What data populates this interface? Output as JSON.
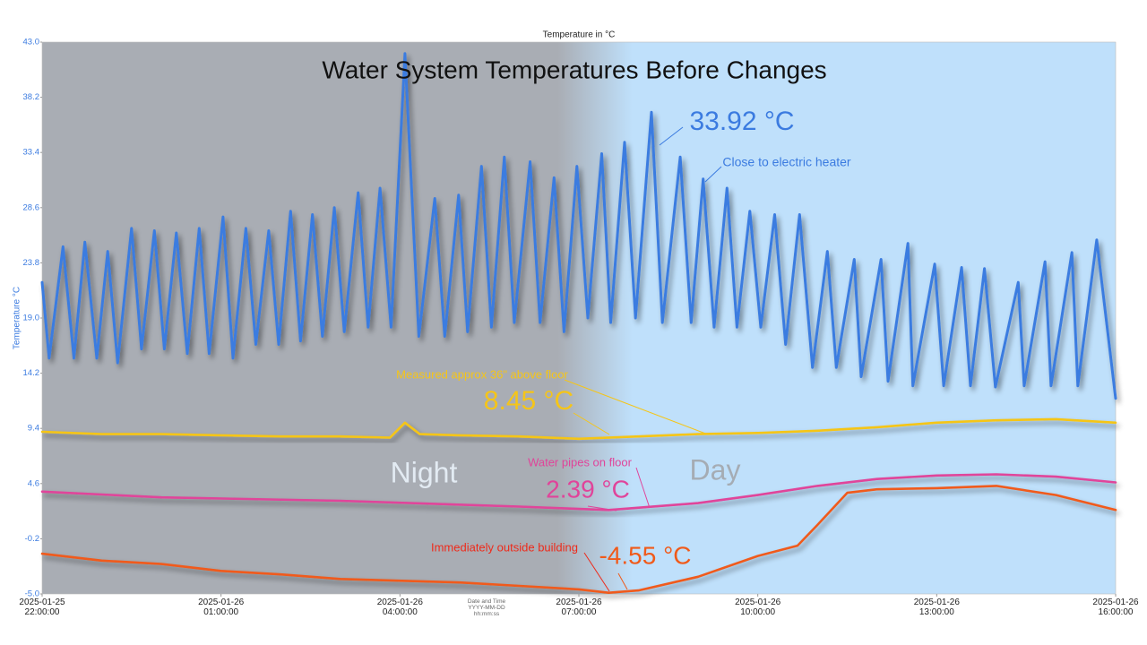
{
  "chart_data": {
    "type": "line",
    "title": "Water System Temperatures Before Changes",
    "subtitle": "Temperature in °C",
    "y_label": "Temperature °C",
    "x_label": "Date and Time YYYY-MM-DD hh:mm:ss",
    "xlim": [
      "2025-01-25 22:00:00",
      "2025-01-26 16:00:00"
    ],
    "xticks": [
      "2025-01-25 22:00:00",
      "2025-01-26 01:00:00",
      "2025-01-26 04:00:00",
      "2025-01-26 07:00:00",
      "2025-01-26 10:00:00",
      "2025-01-26 13:00:00",
      "2025-01-26 16:00:00"
    ],
    "ylim": [
      -5,
      43
    ],
    "yticks": [
      {
        "value": -5,
        "label": "-5.0"
      },
      -0.2,
      4.6,
      9.4,
      14.2,
      {
        "value": 19,
        "label": "19.0"
      },
      23.8,
      28.6,
      33.4,
      38.2,
      {
        "value": 43,
        "label": "43.0"
      }
    ],
    "grid": false,
    "annotations": [
      "Night",
      "Day",
      "33.92 °C",
      "Close to electric heater",
      "Measured approx 36\" above floor",
      "8.45 °C",
      "Water pipes on floor",
      "2.39 °C",
      "Immediately outside building",
      "-4.55 °C"
    ],
    "series": [
      {
        "name": "Close to electric heater",
        "color": "#3b7be0",
        "x": [
          "2025-01-25 22:00:00",
          "2025-01-25 22:07:00",
          "2025-01-25 22:21:00",
          "2025-01-25 22:32:00",
          "2025-01-25 22:43:00",
          "2025-01-25 22:55:00",
          "2025-01-25 23:06:00",
          "2025-01-25 23:16:00",
          "2025-01-25 23:30:00",
          "2025-01-25 23:40:00",
          "2025-01-25 23:53:00",
          "2025-01-26 00:03:00",
          "2025-01-26 00:15:00",
          "2025-01-26 00:26:00",
          "2025-01-26 00:38:00",
          "2025-01-26 00:48:00",
          "2025-01-26 01:02:00",
          "2025-01-26 01:12:00",
          "2025-01-26 01:25:00",
          "2025-01-26 01:35:00",
          "2025-01-26 01:48:00",
          "2025-01-26 01:58:00",
          "2025-01-26 02:10:00",
          "2025-01-26 02:20:00",
          "2025-01-26 02:32:00",
          "2025-01-26 02:42:00",
          "2025-01-26 02:54:00",
          "2025-01-26 03:04:00",
          "2025-01-26 03:18:00",
          "2025-01-26 03:28:00",
          "2025-01-26 03:40:00",
          "2025-01-26 03:51:00",
          "2025-01-26 04:05:00",
          "2025-01-26 04:19:00",
          "2025-01-26 04:35:00",
          "2025-01-26 04:45:00",
          "2025-01-26 04:59:00",
          "2025-01-26 05:08:00",
          "2025-01-26 05:22:00",
          "2025-01-26 05:32:00",
          "2025-01-26 05:45:00",
          "2025-01-26 05:55:00",
          "2025-01-26 06:11:00",
          "2025-01-26 06:21:00",
          "2025-01-26 06:35:00",
          "2025-01-26 06:45:00",
          "2025-01-26 06:58:00",
          "2025-01-26 07:09:00",
          "2025-01-26 07:23:00",
          "2025-01-26 07:32:00",
          "2025-01-26 07:46:00",
          "2025-01-26 07:57:00",
          "2025-01-26 08:13:00",
          "2025-01-26 08:24:00",
          "2025-01-26 08:42:00",
          "2025-01-26 08:53:00",
          "2025-01-26 09:05:00",
          "2025-01-26 09:16:00",
          "2025-01-26 09:29:00",
          "2025-01-26 09:39:00",
          "2025-01-26 09:52:00",
          "2025-01-26 10:03:00",
          "2025-01-26 10:17:00",
          "2025-01-26 10:28:00",
          "2025-01-26 10:42:00",
          "2025-01-26 10:55:00",
          "2025-01-26 11:10:00",
          "2025-01-26 11:19:00",
          "2025-01-26 11:37:00",
          "2025-01-26 11:44:00",
          "2025-01-26 12:04:00",
          "2025-01-26 12:11:00",
          "2025-01-26 12:31:00",
          "2025-01-26 12:36:00",
          "2025-01-26 12:58:00",
          "2025-01-26 13:07:00",
          "2025-01-26 13:25:00",
          "2025-01-26 13:34:00",
          "2025-01-26 13:48:00",
          "2025-01-26 13:59:00",
          "2025-01-26 14:22:00",
          "2025-01-26 14:28:00",
          "2025-01-26 14:49:00",
          "2025-01-26 14:55:00",
          "2025-01-26 15:16:00",
          "2025-01-26 15:22:00",
          "2025-01-26 15:41:00",
          "2025-01-26 16:00:00"
        ],
        "values": [
          22.1,
          15.5,
          25.2,
          15.5,
          25.6,
          15.5,
          24.8,
          15.1,
          26.8,
          16.3,
          26.6,
          16.3,
          26.4,
          15.9,
          26.8,
          15.9,
          27.8,
          15.5,
          26.8,
          16.7,
          26.6,
          16.7,
          28.3,
          17.0,
          28.0,
          17.4,
          28.6,
          17.8,
          29.9,
          18.2,
          30.3,
          18.2,
          42.0,
          17.4,
          29.4,
          17.4,
          29.7,
          17.8,
          32.2,
          18.2,
          33.0,
          18.6,
          32.6,
          18.6,
          31.2,
          17.8,
          32.2,
          19.0,
          33.3,
          18.6,
          34.3,
          19.0,
          36.9,
          18.6,
          33.0,
          18.6,
          31.1,
          18.2,
          30.3,
          18.2,
          28.3,
          18.2,
          28.0,
          16.7,
          28.0,
          14.7,
          24.8,
          14.7,
          24.1,
          13.9,
          24.1,
          13.5,
          25.5,
          13.1,
          23.7,
          13.1,
          23.4,
          13.1,
          23.3,
          13.0,
          22.1,
          13.1,
          23.9,
          13.1,
          24.7,
          13.1,
          25.8,
          12.0
        ]
      },
      {
        "name": "Measured approx 36\" above floor",
        "color": "#f5c518",
        "x": [
          "2025-01-25 22:00:00",
          "2025-01-25 23:00:00",
          "2025-01-26 00:00:00",
          "2025-01-26 01:00:00",
          "2025-01-26 02:00:00",
          "2025-01-26 03:00:00",
          "2025-01-26 03:50:00",
          "2025-01-26 04:05:00",
          "2025-01-26 04:20:00",
          "2025-01-26 05:00:00",
          "2025-01-26 06:00:00",
          "2025-01-26 07:00:00",
          "2025-01-26 08:00:00",
          "2025-01-26 09:00:00",
          "2025-01-26 10:00:00",
          "2025-01-26 11:00:00",
          "2025-01-26 12:00:00",
          "2025-01-26 13:00:00",
          "2025-01-26 14:00:00",
          "2025-01-26 15:00:00",
          "2025-01-26 16:00:00"
        ],
        "values": [
          9.1,
          8.9,
          8.9,
          8.8,
          8.7,
          8.7,
          8.6,
          9.9,
          8.9,
          8.8,
          8.7,
          8.5,
          8.7,
          8.9,
          9.0,
          9.2,
          9.5,
          9.9,
          10.1,
          10.2,
          9.9
        ]
      },
      {
        "name": "Water pipes on floor",
        "color": "#e0449a",
        "x": [
          "2025-01-25 22:00:00",
          "2025-01-26 00:00:00",
          "2025-01-26 03:00:00",
          "2025-01-26 06:00:00",
          "2025-01-26 07:30:00",
          "2025-01-26 09:00:00",
          "2025-01-26 10:00:00",
          "2025-01-26 11:00:00",
          "2025-01-26 12:00:00",
          "2025-01-26 13:00:00",
          "2025-01-26 14:00:00",
          "2025-01-26 15:00:00",
          "2025-01-26 16:00:00"
        ],
        "values": [
          3.9,
          3.4,
          3.1,
          2.6,
          2.3,
          2.9,
          3.6,
          4.4,
          5.0,
          5.3,
          5.4,
          5.2,
          4.7
        ]
      },
      {
        "name": "Immediately outside building",
        "color": "#f05a1a",
        "x": [
          "2025-01-25 22:00:00",
          "2025-01-25 23:00:00",
          "2025-01-26 00:00:00",
          "2025-01-26 01:00:00",
          "2025-01-26 02:00:00",
          "2025-01-26 03:00:00",
          "2025-01-26 05:00:00",
          "2025-01-26 06:00:00",
          "2025-01-26 07:00:00",
          "2025-01-26 07:30:00",
          "2025-01-26 08:00:00",
          "2025-01-26 09:00:00",
          "2025-01-26 10:00:00",
          "2025-01-26 10:40:00",
          "2025-01-26 11:00:00",
          "2025-01-26 11:30:00",
          "2025-01-26 12:00:00",
          "2025-01-26 13:00:00",
          "2025-01-26 14:00:00",
          "2025-01-26 15:00:00",
          "2025-01-26 16:00:00"
        ],
        "values": [
          -1.5,
          -2.1,
          -2.4,
          -3.0,
          -3.3,
          -3.7,
          -4.0,
          -4.3,
          -4.6,
          -4.9,
          -4.7,
          -3.5,
          -1.7,
          -0.8,
          1.0,
          3.8,
          4.1,
          4.2,
          4.4,
          3.6,
          2.3
        ]
      }
    ]
  }
}
